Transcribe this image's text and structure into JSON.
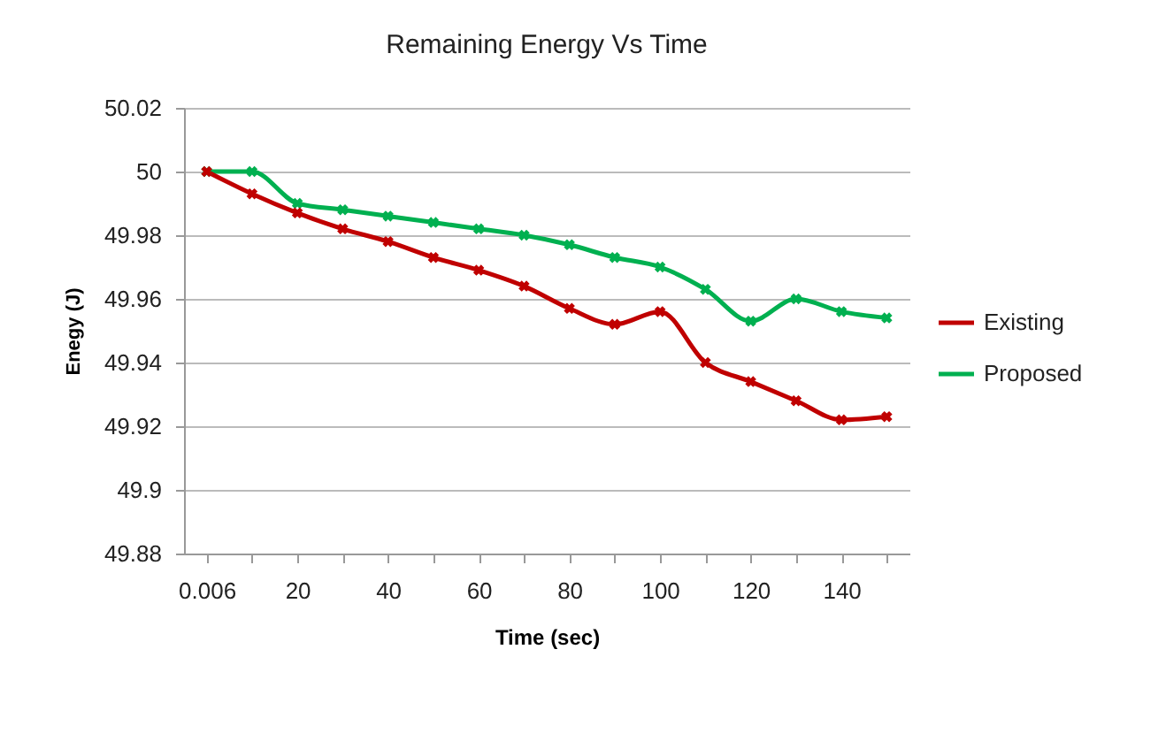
{
  "chart_data": {
    "type": "line",
    "title": "Remaining Energy Vs Time",
    "xlabel": "Time  (sec)",
    "ylabel": "Enegy (J)",
    "categories": [
      "0.006",
      null,
      "20",
      null,
      "40",
      null,
      "60",
      null,
      "80",
      null,
      "100",
      null,
      "120",
      null,
      "140",
      null
    ],
    "series": [
      {
        "name": "Existing",
        "color": "#c00000",
        "values": [
          50,
          49.993,
          49.987,
          49.982,
          49.978,
          49.973,
          49.969,
          49.964,
          49.957,
          49.952,
          49.956,
          49.94,
          49.934,
          49.928,
          49.922,
          49.923
        ]
      },
      {
        "name": "Proposed",
        "color": "#00b050",
        "values": [
          50,
          50,
          49.99,
          49.988,
          49.986,
          49.984,
          49.982,
          49.98,
          49.977,
          49.973,
          49.97,
          49.963,
          49.953,
          49.96,
          49.956,
          49.954
        ]
      }
    ],
    "ylim": [
      49.88,
      50.02
    ],
    "yticks": [
      49.88,
      49.9,
      49.92,
      49.94,
      49.96,
      49.98,
      50,
      50.02
    ],
    "grid": "y",
    "legend": "right",
    "marker": "cross",
    "line_style": "solid"
  }
}
